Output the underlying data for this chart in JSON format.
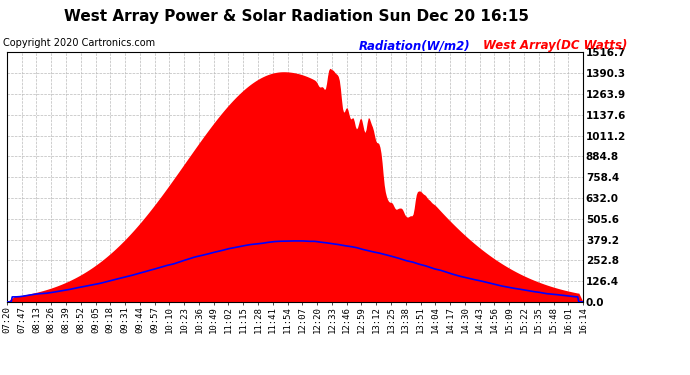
{
  "title": "West Array Power & Solar Radiation Sun Dec 20 16:15",
  "copyright": "Copyright 2020 Cartronics.com",
  "legend_radiation": "Radiation(W/m2)",
  "legend_west_array": "West Array(DC Watts)",
  "ylabel_values": [
    0.0,
    126.4,
    252.8,
    379.2,
    505.6,
    632.0,
    758.4,
    884.8,
    1011.2,
    1137.6,
    1263.9,
    1390.3,
    1516.7
  ],
  "ylim": [
    0,
    1516.7
  ],
  "background_color": "#ffffff",
  "plot_bg_color": "#ffffff",
  "grid_color": "#bbbbbb",
  "radiation_color": "#0000ff",
  "array_color": "#ff0000",
  "title_fontsize": 11,
  "copyright_fontsize": 7,
  "tick_fontsize": 6.5,
  "ytick_fontsize": 7.5,
  "xtick_labels": [
    "07:20",
    "07:47",
    "08:13",
    "08:26",
    "08:39",
    "08:52",
    "09:05",
    "09:18",
    "09:31",
    "09:44",
    "09:57",
    "10:10",
    "10:23",
    "10:36",
    "10:49",
    "11:02",
    "11:15",
    "11:28",
    "11:41",
    "11:54",
    "12:07",
    "12:20",
    "12:33",
    "12:46",
    "12:59",
    "13:12",
    "13:25",
    "13:38",
    "13:51",
    "14:04",
    "14:17",
    "14:30",
    "14:43",
    "14:56",
    "15:09",
    "15:22",
    "15:35",
    "15:48",
    "16:01",
    "16:14"
  ]
}
